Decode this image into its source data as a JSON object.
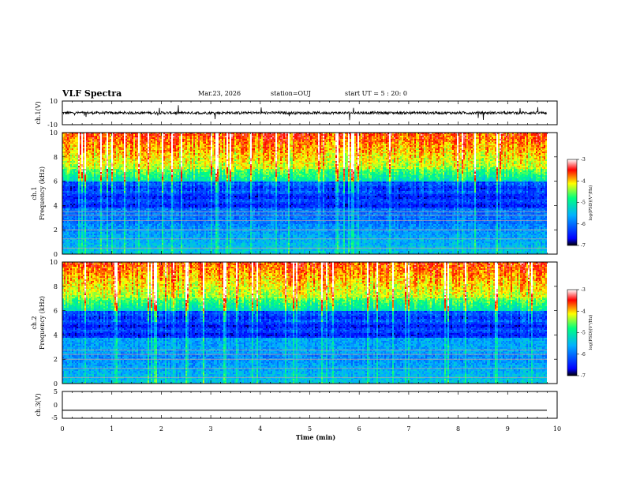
{
  "header": {
    "title": "VLF Spectra",
    "date": "Mar.23, 2026",
    "station": "station=OUJ",
    "start_time": "start UT = 5 : 20: 0"
  },
  "chart_data": [
    {
      "type": "line",
      "panel": "ch1-waveform",
      "ylabel": "ch.1(V)",
      "ylim": [
        -10,
        10
      ],
      "ytick_labels": [
        "10",
        "-10"
      ],
      "description_level": "noisy baseline near 0 V with small spikes"
    },
    {
      "type": "heatmap",
      "panel": "ch1-spectrogram",
      "ylabel_top": "ch.1",
      "ylabel": "Frequency (kHz)",
      "ylim": [
        0,
        10
      ],
      "ytick_labels": [
        "0",
        "2",
        "4",
        "6",
        "8",
        "10"
      ],
      "colorbar": {
        "label": "log(PSD)(V²/Hz)",
        "range": [
          -7,
          -3
        ],
        "tick_labels": [
          "-3",
          "-4",
          "-5",
          "-6",
          "-7"
        ],
        "colors": [
          "#000000",
          "#0000ff",
          "#00b0ff",
          "#00ff80",
          "#ffff00",
          "#ff0000",
          "#ffffff"
        ]
      },
      "hum_lines_khz": [
        0.5,
        1.25,
        2.0,
        2.75,
        3.2,
        3.5
      ]
    },
    {
      "type": "heatmap",
      "panel": "ch2-spectrogram",
      "ylabel_top": "ch.2",
      "ylabel": "Frequency (kHz)",
      "ylim": [
        0,
        10
      ],
      "ytick_labels": [
        "0",
        "2",
        "4",
        "6",
        "8",
        "10"
      ],
      "colorbar": {
        "label": "log(PSD)(V²/Hz)",
        "range": [
          -7,
          -3
        ],
        "tick_labels": [
          "-3",
          "-4",
          "-5",
          "-6",
          "-7"
        ],
        "colors": [
          "#000000",
          "#0000ff",
          "#00b0ff",
          "#00ff80",
          "#ffff00",
          "#ff0000",
          "#ffffff"
        ]
      },
      "hum_lines_khz": [
        0.5,
        1.25,
        2.0,
        2.4,
        2.75
      ]
    },
    {
      "type": "line",
      "panel": "ch3-waveform",
      "ylabel": "ch.3(V)",
      "ylim": [
        -5,
        5
      ],
      "ytick_labels": [
        "5",
        "0",
        "-5"
      ],
      "constant_value": -2
    }
  ],
  "x_axis": {
    "label": "Time (min)",
    "range": [
      0,
      10
    ],
    "tick_labels": [
      "0",
      "1",
      "2",
      "3",
      "4",
      "5",
      "6",
      "7",
      "8",
      "9",
      "10"
    ]
  }
}
